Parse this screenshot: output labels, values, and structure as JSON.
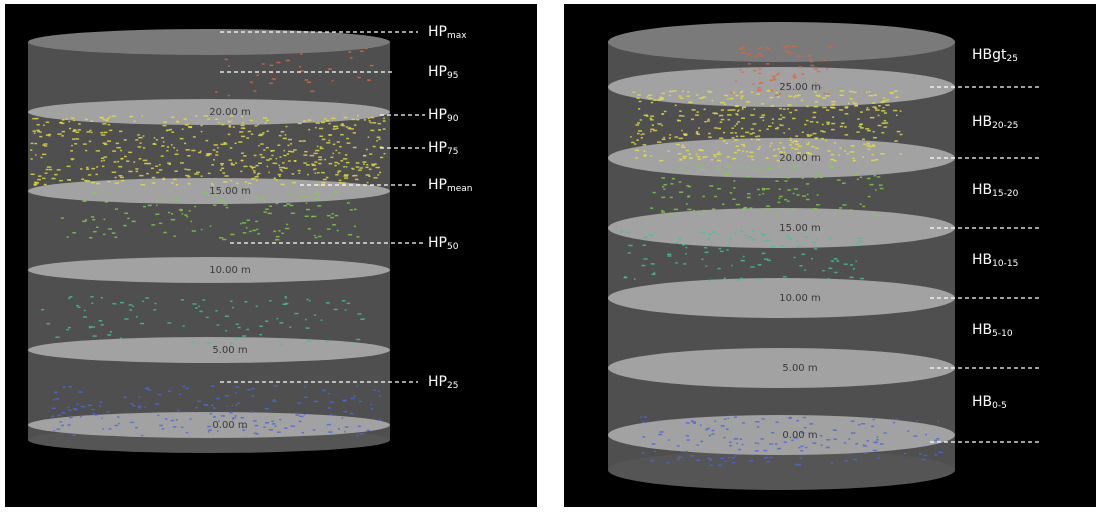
{
  "left": {
    "heights": [
      "20.00 m",
      "15.00 m",
      "10.00 m",
      "5.00 m",
      "0.00 m"
    ],
    "labels": [
      {
        "base": "HP",
        "sub": "max"
      },
      {
        "base": "HP",
        "sub": "95"
      },
      {
        "base": "HP",
        "sub": "90"
      },
      {
        "base": "HP",
        "sub": "75"
      },
      {
        "base": "HP",
        "sub": "mean"
      },
      {
        "base": "HP",
        "sub": "50"
      },
      {
        "base": "HP",
        "sub": "25"
      }
    ]
  },
  "right": {
    "heights": [
      "25.00 m",
      "20.00 m",
      "15.00 m",
      "10.00 m",
      "5.00 m",
      "0.00 m"
    ],
    "labels": [
      {
        "base": "HBgt",
        "sub": "25"
      },
      {
        "base": "HB",
        "sub": "20-25"
      },
      {
        "base": "HB",
        "sub": "15-20"
      },
      {
        "base": "HB",
        "sub": "10-15"
      },
      {
        "base": "HB",
        "sub": "5-10"
      },
      {
        "base": "HB",
        "sub": "0-5"
      }
    ]
  }
}
